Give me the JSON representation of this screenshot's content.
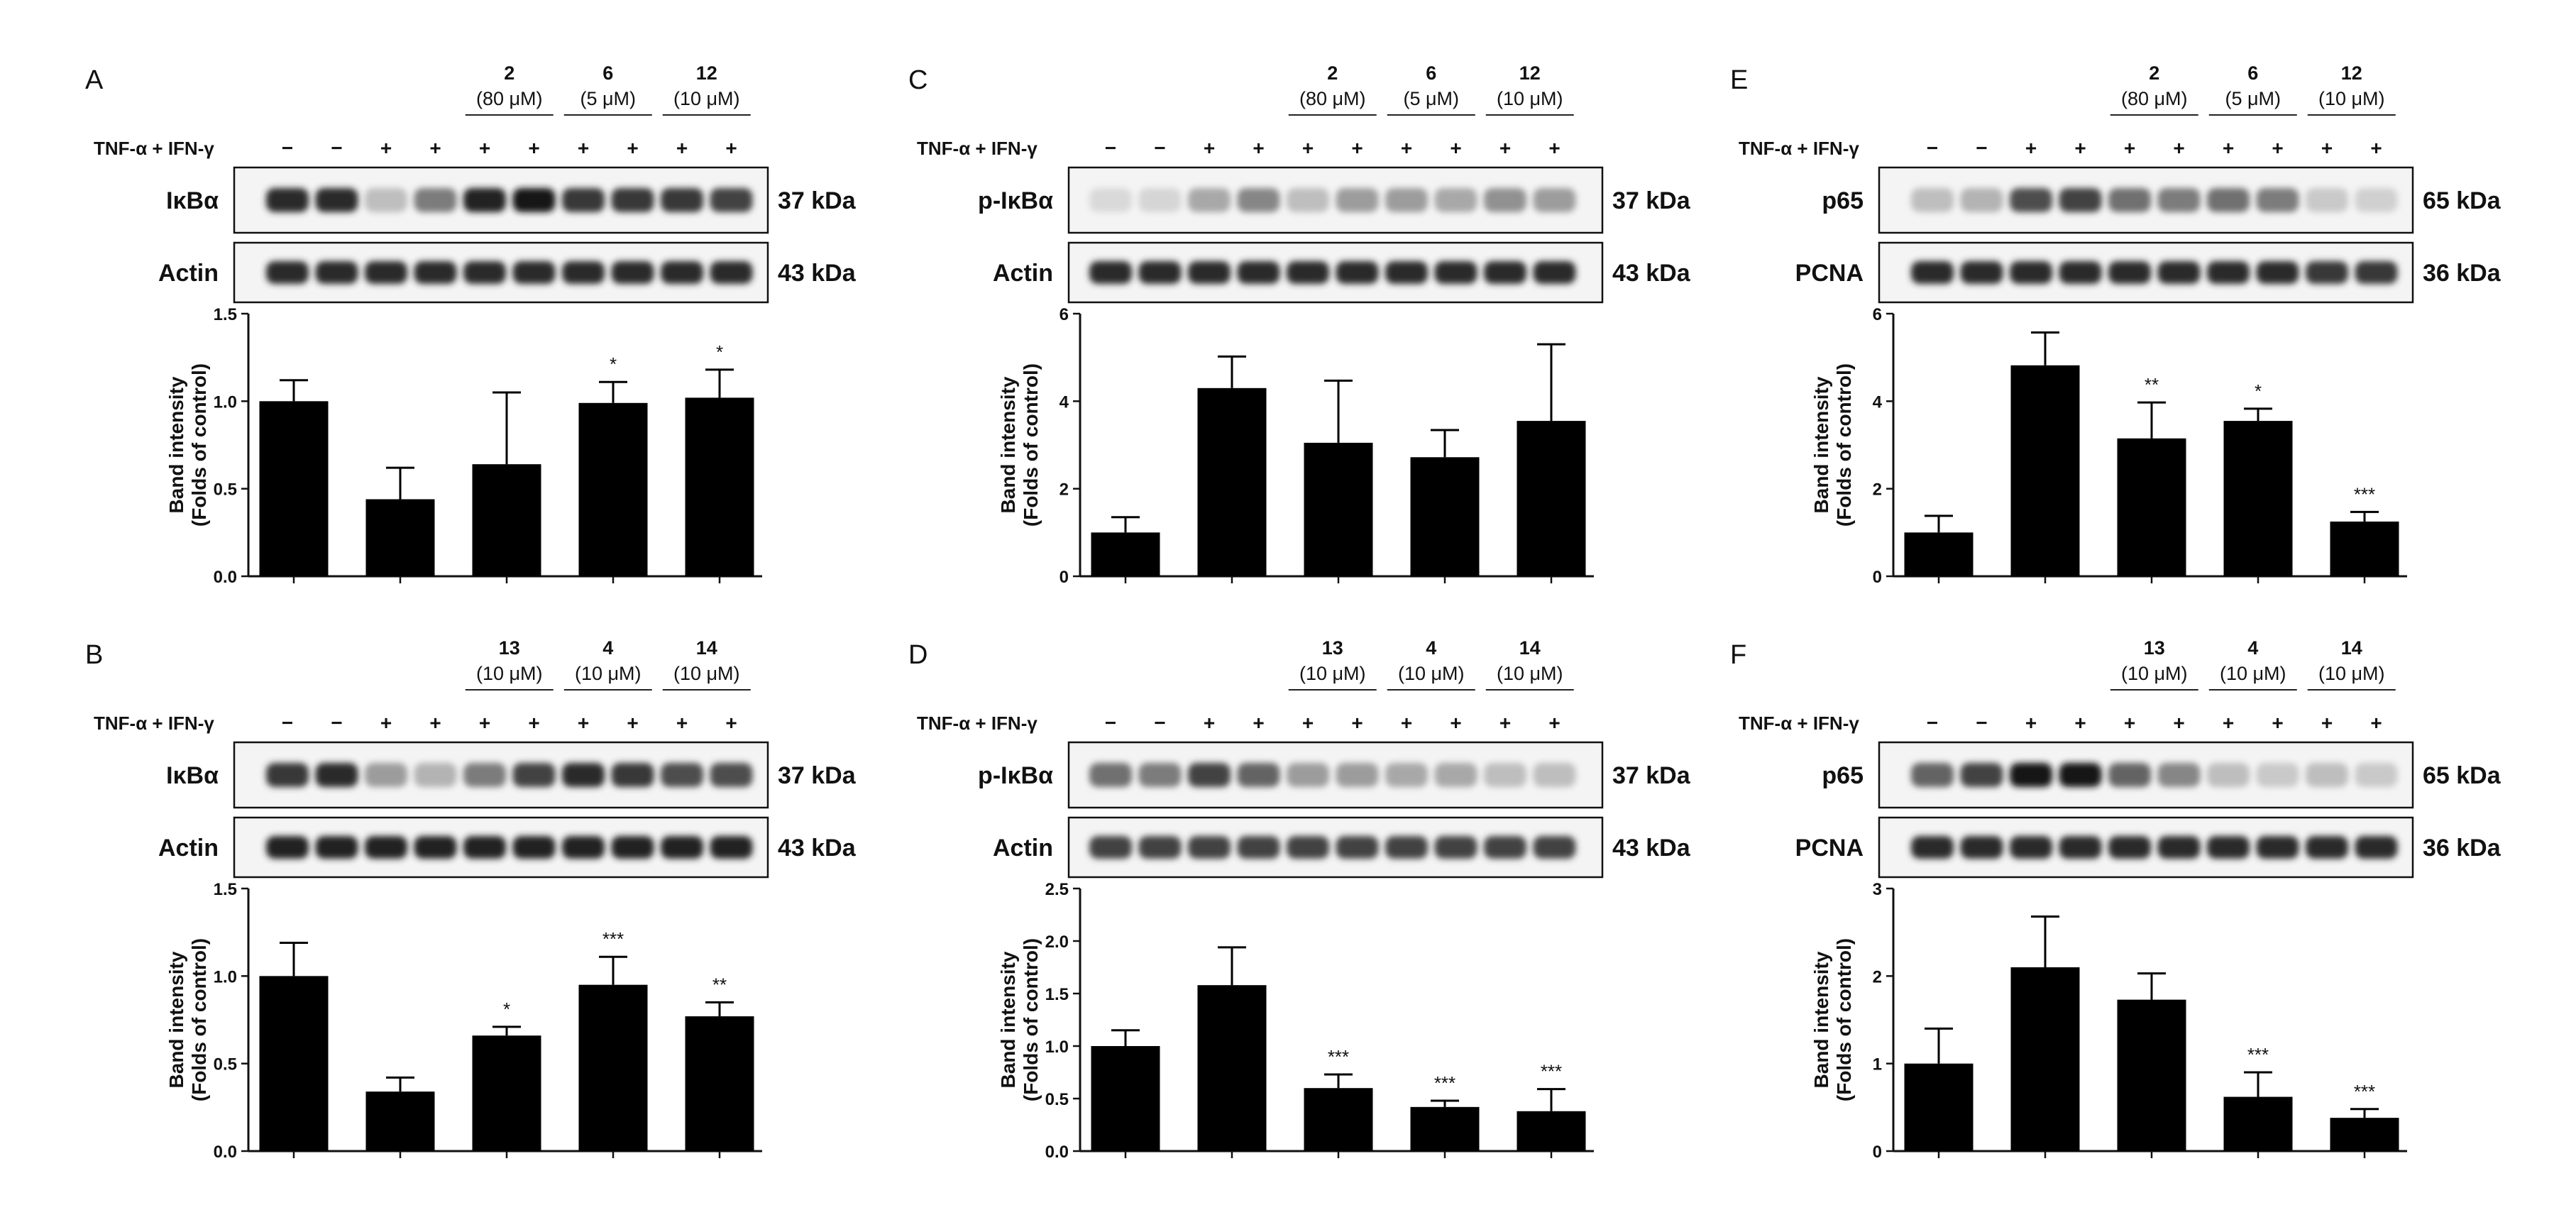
{
  "treatment_label": "TNF-α + IFN-γ",
  "signs": [
    "−",
    "−",
    "+",
    "+",
    "+",
    "+",
    "+",
    "+",
    "+",
    "+"
  ],
  "ylabel_line1": "Band intensity",
  "ylabel_line2": "(Folds of control)",
  "panels": [
    {
      "letter": "A",
      "groups": [
        {
          "compound": "2",
          "dose": "(80 μM)"
        },
        {
          "compound": "6",
          "dose": "(5 μM)"
        },
        {
          "compound": "12",
          "dose": "(10 μM)"
        }
      ],
      "blots": [
        {
          "protein": "IκBα",
          "size": "37 kDa",
          "intensities": [
            0.85,
            0.85,
            0.2,
            0.5,
            0.9,
            0.95,
            0.8,
            0.8,
            0.8,
            0.75
          ]
        },
        {
          "protein": "Actin",
          "size": "43 kDa",
          "intensities": [
            0.85,
            0.85,
            0.85,
            0.85,
            0.85,
            0.85,
            0.85,
            0.85,
            0.85,
            0.85
          ]
        }
      ]
    },
    {
      "letter": "B",
      "groups": [
        {
          "compound": "13",
          "dose": "(10 μM)"
        },
        {
          "compound": "4",
          "dose": "(10 μM)"
        },
        {
          "compound": "14",
          "dose": "(10 μM)"
        }
      ],
      "blots": [
        {
          "protein": "IκBα",
          "size": "37 kDa",
          "intensities": [
            0.8,
            0.85,
            0.35,
            0.25,
            0.5,
            0.75,
            0.85,
            0.8,
            0.7,
            0.7
          ]
        },
        {
          "protein": "Actin",
          "size": "43 kDa",
          "intensities": [
            0.9,
            0.9,
            0.9,
            0.9,
            0.9,
            0.9,
            0.9,
            0.9,
            0.9,
            0.9
          ]
        }
      ]
    },
    {
      "letter": "C",
      "groups": [
        {
          "compound": "2",
          "dose": "(80 μM)"
        },
        {
          "compound": "6",
          "dose": "(5 μM)"
        },
        {
          "compound": "12",
          "dose": "(10 μM)"
        }
      ],
      "blots": [
        {
          "protein": "p-IκBα",
          "size": "37 kDa",
          "intensities": [
            0.08,
            0.1,
            0.3,
            0.45,
            0.2,
            0.35,
            0.35,
            0.3,
            0.4,
            0.35
          ]
        },
        {
          "protein": "Actin",
          "size": "43 kDa",
          "intensities": [
            0.85,
            0.85,
            0.85,
            0.85,
            0.85,
            0.85,
            0.85,
            0.85,
            0.85,
            0.85
          ]
        }
      ]
    },
    {
      "letter": "D",
      "groups": [
        {
          "compound": "13",
          "dose": "(10 μM)"
        },
        {
          "compound": "4",
          "dose": "(10 μM)"
        },
        {
          "compound": "14",
          "dose": "(10 μM)"
        }
      ],
      "blots": [
        {
          "protein": "p-IκBα",
          "size": "37 kDa",
          "intensities": [
            0.55,
            0.5,
            0.75,
            0.6,
            0.35,
            0.35,
            0.3,
            0.3,
            0.2,
            0.2
          ]
        },
        {
          "protein": "Actin",
          "size": "43 kDa",
          "intensities": [
            0.75,
            0.75,
            0.75,
            0.75,
            0.75,
            0.75,
            0.75,
            0.75,
            0.75,
            0.75
          ]
        }
      ]
    },
    {
      "letter": "E",
      "groups": [
        {
          "compound": "2",
          "dose": "(80 μM)"
        },
        {
          "compound": "6",
          "dose": "(5 μM)"
        },
        {
          "compound": "12",
          "dose": "(10 μM)"
        }
      ],
      "blots": [
        {
          "protein": "p65",
          "size": "65 kDa",
          "intensities": [
            0.2,
            0.25,
            0.7,
            0.75,
            0.55,
            0.5,
            0.55,
            0.5,
            0.15,
            0.12
          ]
        },
        {
          "protein": "PCNA",
          "size": "36 kDa",
          "intensities": [
            0.85,
            0.85,
            0.85,
            0.85,
            0.85,
            0.85,
            0.85,
            0.85,
            0.8,
            0.8
          ]
        }
      ]
    },
    {
      "letter": "F",
      "groups": [
        {
          "compound": "13",
          "dose": "(10 μM)"
        },
        {
          "compound": "4",
          "dose": "(10 μM)"
        },
        {
          "compound": "14",
          "dose": "(10 μM)"
        }
      ],
      "blots": [
        {
          "protein": "p65",
          "size": "65 kDa",
          "intensities": [
            0.6,
            0.75,
            0.95,
            0.95,
            0.6,
            0.45,
            0.2,
            0.15,
            0.2,
            0.15
          ]
        },
        {
          "protein": "PCNA",
          "size": "36 kDa",
          "intensities": [
            0.85,
            0.85,
            0.85,
            0.85,
            0.85,
            0.85,
            0.85,
            0.85,
            0.85,
            0.85
          ]
        }
      ]
    }
  ],
  "chart_data": [
    {
      "panel": "A",
      "type": "bar",
      "values": [
        1.0,
        0.44,
        0.64,
        0.99,
        1.02
      ],
      "errors": [
        0.12,
        0.18,
        0.41,
        0.12,
        0.16
      ],
      "significance": [
        "",
        "",
        "",
        "*",
        "*"
      ],
      "ylim": [
        0,
        1.5
      ],
      "yticks": [
        "0.0",
        "0.5",
        "1.0",
        "1.5"
      ],
      "ylabel": "Band intensity (Folds of control)"
    },
    {
      "panel": "B",
      "type": "bar",
      "values": [
        1.0,
        0.34,
        0.66,
        0.95,
        0.77
      ],
      "errors": [
        0.19,
        0.08,
        0.05,
        0.16,
        0.08
      ],
      "significance": [
        "",
        "",
        "*",
        "***",
        "**"
      ],
      "ylim": [
        0,
        1.5
      ],
      "yticks": [
        "0.0",
        "0.5",
        "1.0",
        "1.5"
      ],
      "ylabel": "Band intensity (Folds of control)"
    },
    {
      "panel": "C",
      "type": "bar",
      "values": [
        1.0,
        4.3,
        3.05,
        2.72,
        3.55
      ],
      "errors": [
        0.35,
        0.72,
        1.42,
        0.62,
        1.75
      ],
      "significance": [
        "",
        "",
        "",
        "",
        ""
      ],
      "ylim": [
        0,
        6
      ],
      "yticks": [
        "0",
        "2",
        "4",
        "6"
      ],
      "ylabel": "Band intensity (Folds of control)"
    },
    {
      "panel": "D",
      "type": "bar",
      "values": [
        1.0,
        1.58,
        0.6,
        0.42,
        0.38
      ],
      "errors": [
        0.15,
        0.36,
        0.13,
        0.06,
        0.21
      ],
      "significance": [
        "",
        "",
        "***",
        "***",
        "***"
      ],
      "ylim": [
        0,
        2.5
      ],
      "yticks": [
        "0.0",
        "0.5",
        "1.0",
        "1.5",
        "2.0",
        "2.5"
      ],
      "ylabel": "Band intensity (Folds of control)"
    },
    {
      "panel": "E",
      "type": "bar",
      "values": [
        1.0,
        4.82,
        3.15,
        3.55,
        1.25
      ],
      "errors": [
        0.38,
        0.75,
        0.82,
        0.28,
        0.22
      ],
      "significance": [
        "",
        "",
        "**",
        "*",
        "***"
      ],
      "ylim": [
        0,
        6
      ],
      "yticks": [
        "0",
        "2",
        "4",
        "6"
      ],
      "ylabel": "Band intensity (Folds of control)"
    },
    {
      "panel": "F",
      "type": "bar",
      "values": [
        1.0,
        2.1,
        1.73,
        0.62,
        0.38
      ],
      "errors": [
        0.4,
        0.58,
        0.3,
        0.28,
        0.1
      ],
      "significance": [
        "",
        "",
        "",
        "***",
        "***"
      ],
      "ylim": [
        0,
        3
      ],
      "yticks": [
        "0",
        "1",
        "2",
        "3"
      ],
      "ylabel": "Band intensity (Folds of control)"
    }
  ]
}
